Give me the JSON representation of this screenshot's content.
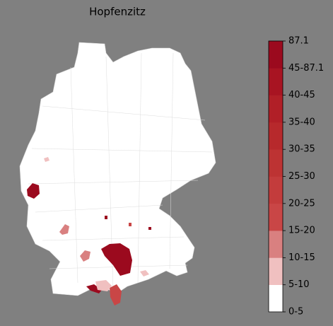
{
  "title": "Hopfenzitz",
  "legend": {
    "ticks": [
      "0-5",
      "5-10",
      "10-15",
      "15-20",
      "20-25",
      "25-30",
      "30-35",
      "35-40",
      "40-45",
      "45-87.1",
      "87.1"
    ],
    "colors": [
      "#ffffff",
      "#f0c0c0",
      "#d98080",
      "#c94646",
      "#c33c3c",
      "#bd3333",
      "#b7292c",
      "#b11f27",
      "#a81422",
      "#9b0a1e"
    ]
  }
}
